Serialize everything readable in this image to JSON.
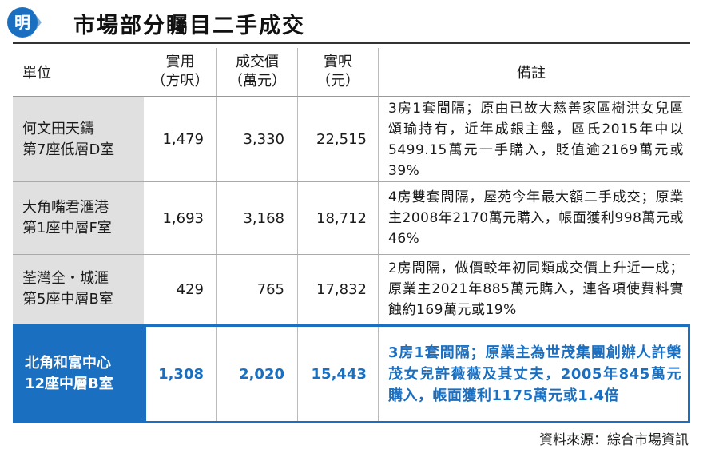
{
  "header": {
    "logo_char": "明",
    "title": "市場部分矚目二手成交"
  },
  "colors": {
    "accent": "#1a6fc0",
    "unit_bg": "#e0e0e0"
  },
  "table": {
    "columns": {
      "unit": "單位",
      "area_line1": "實用",
      "area_line2": "（方呎）",
      "price_line1": "成交價",
      "price_line2": "（萬元）",
      "ppsf_line1": "實呎",
      "ppsf_line2": "（元）",
      "note": "備註"
    },
    "rows": [
      {
        "unit": "何文田天鑄\n第7座低層D室",
        "area": "1,479",
        "price": "3,330",
        "ppsf": "22,515",
        "note": "3房1套間隔；原由已故大慈善家區樹洪女兒區頌瑜持有，近年成銀主盤，區氏2015年中以5499.15萬元一手購入，貶值逾2169萬元或39%"
      },
      {
        "unit": "大角嘴君滙港\n第1座中層F室",
        "area": "1,693",
        "price": "3,168",
        "ppsf": "18,712",
        "note": "4房雙套間隔，屋苑今年最大額二手成交；原業主2008年2170萬元購入，帳面獲利998萬元或46%"
      },
      {
        "unit": "荃灣全・城滙\n第5座中層B室",
        "area": "429",
        "price": "765",
        "ppsf": "17,832",
        "note": "2房間隔，做價較年初同類成交價上升近一成；原業主2021年885萬元購入，連各項使費料實蝕約169萬元或19%"
      },
      {
        "unit": "北角和富中心\n12座中層B室",
        "area": "1,308",
        "price": "2,020",
        "ppsf": "15,443",
        "note": "3房1套間隔；原業主為世茂集團創辦人許榮茂女兒許薇薇及其丈夫，2005年845萬元購入，帳面獲利1175萬元或1.4倍"
      }
    ]
  },
  "source": "資料來源：綜合市場資訊"
}
